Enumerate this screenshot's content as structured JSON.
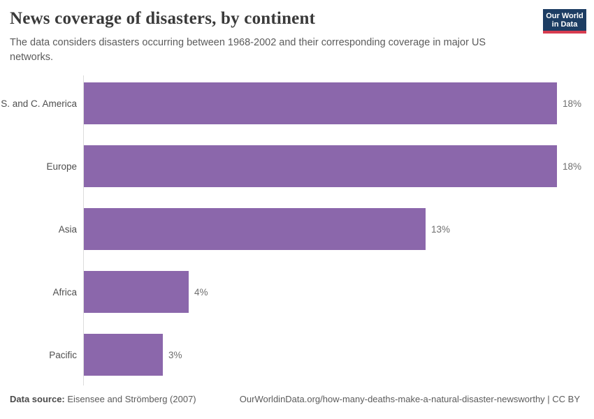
{
  "header": {
    "title": "News coverage of disasters, by continent",
    "subtitle": "The data considers disasters occurring between 1968-2002 and their corresponding coverage in major US networks.",
    "logo": {
      "line1": "Our World",
      "line2": "in Data"
    }
  },
  "chart_data": {
    "type": "bar",
    "orientation": "horizontal",
    "title": "News coverage of disasters, by continent",
    "categories": [
      "S. and C. America",
      "Europe",
      "Asia",
      "Africa",
      "Pacific"
    ],
    "values": [
      18,
      18,
      13,
      4,
      3
    ],
    "value_labels": [
      "18%",
      "18%",
      "13%",
      "4%",
      "3%"
    ],
    "unit": "%",
    "xlim": [
      0,
      18
    ],
    "grid": false,
    "legend": "none",
    "bar_color": "#8b67ab"
  },
  "footer": {
    "datasource_label": "Data source:",
    "datasource_value": " Eisensee and Strömberg (2007)",
    "attribution": "OurWorldinData.org/how-many-deaths-make-a-natural-disaster-newsworthy | CC BY"
  },
  "colors": {
    "bar": "#8b67ab",
    "logo_background": "#1d3d63",
    "logo_accent_red": "#d73c50",
    "axis_line": "#dcdcdc",
    "title_text": "#3a3a3a",
    "muted_text": "#5b5b5b"
  }
}
